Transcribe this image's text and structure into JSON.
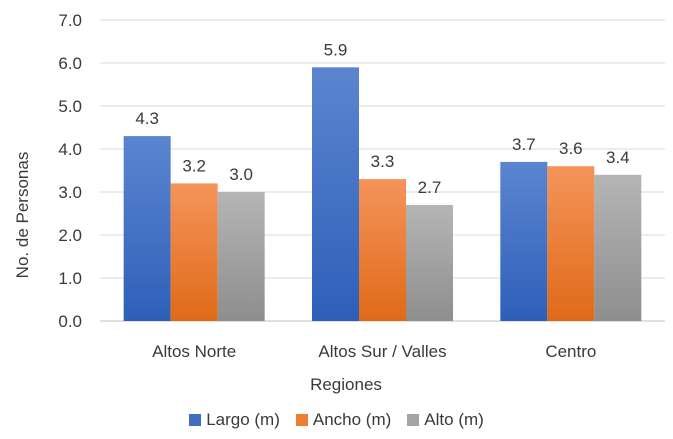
{
  "chart_data": {
    "type": "bar",
    "categories": [
      "Altos Norte",
      "Altos Sur / Valles",
      "Centro"
    ],
    "series": [
      {
        "name": "Largo (m)",
        "values": [
          4.3,
          5.9,
          3.7
        ],
        "color": "#4472C4"
      },
      {
        "name": "Ancho (m)",
        "values": [
          3.2,
          3.3,
          3.6
        ],
        "color": "#ED7D31"
      },
      {
        "name": "Alto (m)",
        "values": [
          3.0,
          2.7,
          3.4
        ],
        "color": "#A5A5A5"
      }
    ],
    "data_labels": [
      [
        "4.3",
        "5.9",
        "3.7"
      ],
      [
        "3.2",
        "3.3",
        "3.6"
      ],
      [
        "3.0",
        "2.7",
        "3.4"
      ]
    ],
    "xlabel": "Regiones",
    "ylabel": "No. de Personas",
    "ylim": [
      0,
      7
    ],
    "yticks": [
      "0.0",
      "1.0",
      "2.0",
      "3.0",
      "4.0",
      "5.0",
      "6.0",
      "7.0"
    ],
    "grid": true,
    "legend_position": "bottom"
  }
}
